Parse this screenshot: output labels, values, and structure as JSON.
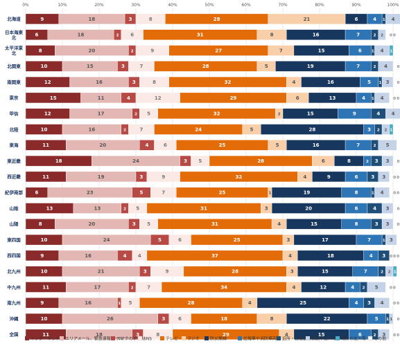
{
  "chart_data": {
    "type": "bar",
    "orientation": "horizontal",
    "stacked": true,
    "xlim": [
      0,
      100
    ],
    "x_ticks": [
      "0%",
      "10%",
      "20%",
      "30%",
      "40%",
      "50%",
      "60%",
      "70%",
      "80%",
      "90%",
      "100%"
    ],
    "grid": true,
    "legend_position": "bottom",
    "categories": [
      "北海道",
      "日本海東北",
      "太平洋東北",
      "北関東",
      "南関東",
      "東京",
      "甲信",
      "北陸",
      "東海",
      "東近畿",
      "西近畿",
      "紀伊南部",
      "山陰",
      "山陽",
      "東四国",
      "西四国",
      "北九州",
      "中九州",
      "南九州",
      "沖縄",
      "全国"
    ],
    "category_label_lines": [
      [
        "北海道"
      ],
      [
        "日本海東",
        "北"
      ],
      [
        "太平洋東",
        "北"
      ],
      [
        "北関東"
      ],
      [
        "南関東"
      ],
      [
        "東京"
      ],
      [
        "甲信"
      ],
      [
        "北陸"
      ],
      [
        "東海"
      ],
      [
        "東近畿"
      ],
      [
        "西近畿"
      ],
      [
        "紀伊南部"
      ],
      [
        "山陰"
      ],
      [
        "山陽"
      ],
      [
        "東四国"
      ],
      [
        "西四国"
      ],
      [
        "北九州"
      ],
      [
        "中九州"
      ],
      [
        "南九州"
      ],
      [
        "沖縄"
      ],
      [
        "全国"
      ]
    ],
    "series": [
      {
        "name": "インターネット",
        "color": "#8b2a2a",
        "label_color": "#ffffff",
        "values": [
          9,
          6,
          8,
          10,
          12,
          15,
          12,
          10,
          11,
          18,
          11,
          6,
          13,
          8,
          10,
          9,
          10,
          11,
          9,
          10,
          11
        ]
      },
      {
        "name": "エリアメール、緊急速報メール",
        "color": "#e3b7b4",
        "label_color": "#555555",
        "values": [
          18,
          18,
          20,
          15,
          16,
          11,
          17,
          16,
          20,
          24,
          19,
          23,
          13,
          20,
          24,
          16,
          21,
          17,
          16,
          26,
          18
        ]
      },
      {
        "name": "スマホのアプリ",
        "color": "#b84a45",
        "label_color": "#ffffff",
        "values": [
          3,
          2,
          2,
          3,
          3,
          4,
          2,
          2,
          4,
          3,
          3,
          5,
          2,
          3,
          5,
          4,
          3,
          2,
          1,
          3,
          3
        ]
      },
      {
        "name": "SNS",
        "color": "#fbe9e6",
        "label_color": "#777777",
        "values": [
          8,
          6,
          9,
          7,
          8,
          12,
          5,
          7,
          6,
          5,
          9,
          7,
          5,
          5,
          6,
          4,
          9,
          7,
          5,
          6,
          8
        ]
      },
      {
        "name": "テレビ",
        "color": "#e36c09",
        "label_color": "#ffffff",
        "values": [
          28,
          31,
          27,
          28,
          32,
          29,
          32,
          24,
          25,
          28,
          32,
          25,
          31,
          31,
          25,
          37,
          28,
          34,
          28,
          18,
          29
        ]
      },
      {
        "name": "ラジオ",
        "color": "#f8cfa8",
        "label_color": "#555555",
        "values": [
          21,
          8,
          7,
          5,
          4,
          6,
          2,
          5,
          5,
          6,
          4,
          1,
          3,
          4,
          3,
          4,
          3,
          4,
          4,
          8,
          4
        ]
      },
      {
        "name": "防災無線",
        "color": "#17375e",
        "label_color": "#ffffff",
        "values": [
          6,
          16,
          15,
          19,
          16,
          13,
          15,
          28,
          16,
          8,
          9,
          19,
          20,
          15,
          17,
          18,
          15,
          12,
          25,
          22,
          15
        ]
      },
      {
        "name": "広報車や消防車両",
        "color": "#2e75b6",
        "label_color": "#ffffff",
        "values": [
          4,
          7,
          6,
          7,
          5,
          4,
          9,
          3,
          7,
          2,
          6,
          8,
          6,
          8,
          7,
          4,
          7,
          4,
          4,
          5,
          6
        ]
      },
      {
        "name": "近所・自治会等",
        "color": "#1f4e79",
        "label_color": "#ffffff",
        "values": [
          1,
          2,
          1,
          2,
          1,
          1,
          4,
          2,
          2,
          3,
          3,
          1,
          4,
          3,
          1,
          3,
          2,
          2,
          3,
          1,
          2
        ]
      },
      {
        "name": "家族や友人等",
        "color": "#c5d3e8",
        "label_color": "#555555",
        "values": [
          4,
          2,
          4,
          4,
          3,
          4,
          4,
          2,
          5,
          3,
          3,
          4,
          3,
          3,
          3,
          0,
          2,
          5,
          4,
          1,
          3
        ]
      },
      {
        "name": "地方の友人等",
        "color": "#4bacc6",
        "label_color": "#ffffff",
        "values": [
          0,
          0,
          1,
          0,
          0,
          0,
          0,
          1,
          0,
          0,
          0,
          0,
          0,
          0,
          0,
          0,
          1,
          0,
          0,
          0,
          0
        ]
      },
      {
        "name": "その他",
        "color": "#f2f2f2",
        "label_color": "#888888",
        "values": [
          0,
          0,
          0,
          0,
          0,
          0,
          0,
          0,
          0,
          0,
          0,
          0,
          0,
          0,
          0,
          0,
          0,
          0,
          0,
          0,
          0
        ]
      }
    ]
  }
}
